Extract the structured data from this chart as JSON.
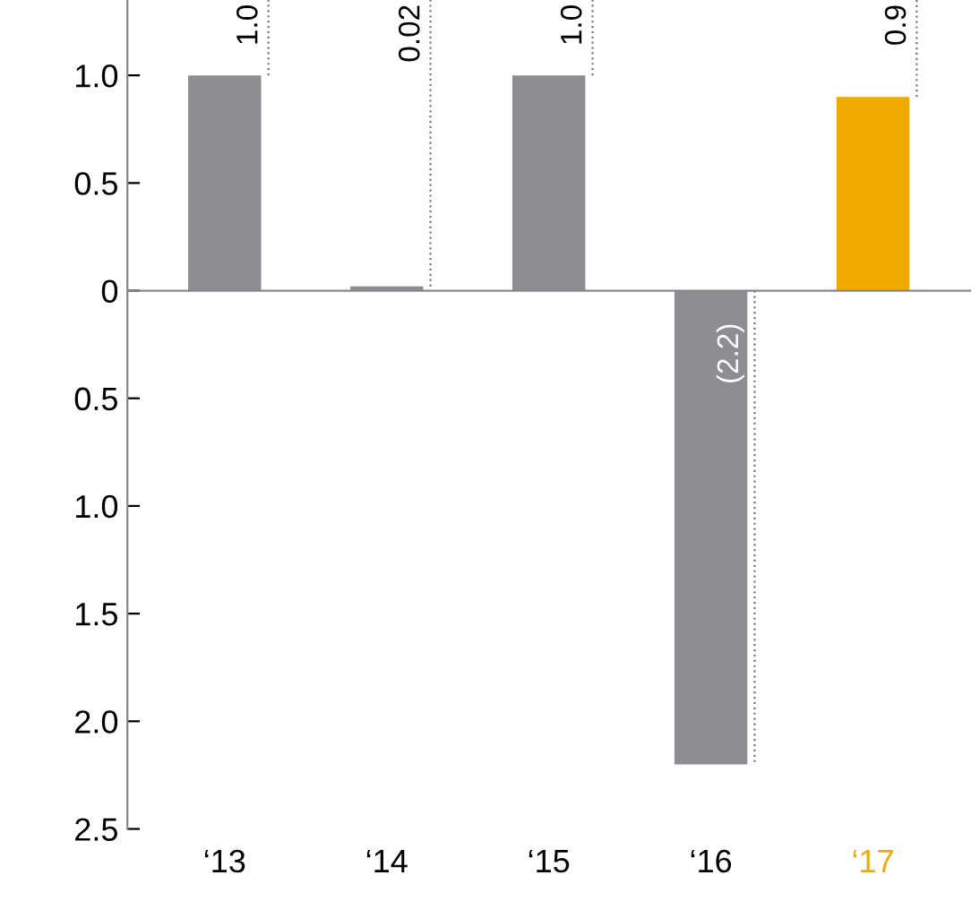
{
  "chart_data": {
    "type": "bar",
    "categories": [
      "‘13",
      "‘14",
      "‘15",
      "‘16",
      "‘17"
    ],
    "values": [
      1.0,
      0.02,
      1.0,
      -2.2,
      0.9
    ],
    "colors": [
      "#8e8e92",
      "#8e8e92",
      "#8e8e92",
      "#8e8e92",
      "#f0aa00"
    ],
    "value_labels": [
      "1.0",
      "0.02",
      "1.0",
      "(2.2)",
      "0.9"
    ],
    "ylim": [
      -2.5,
      1.35
    ],
    "yticks": [
      {
        "value": 1.0,
        "label": "1.0"
      },
      {
        "value": 0.5,
        "label": "0.5"
      },
      {
        "value": 0,
        "label": "0"
      },
      {
        "value": -0.5,
        "label": "0.5"
      },
      {
        "value": -1.0,
        "label": "1.0"
      },
      {
        "value": -1.5,
        "label": "1.5"
      },
      {
        "value": -2.0,
        "label": "2.0"
      },
      {
        "value": -2.5,
        "label": "2.5"
      }
    ],
    "legend": false
  }
}
